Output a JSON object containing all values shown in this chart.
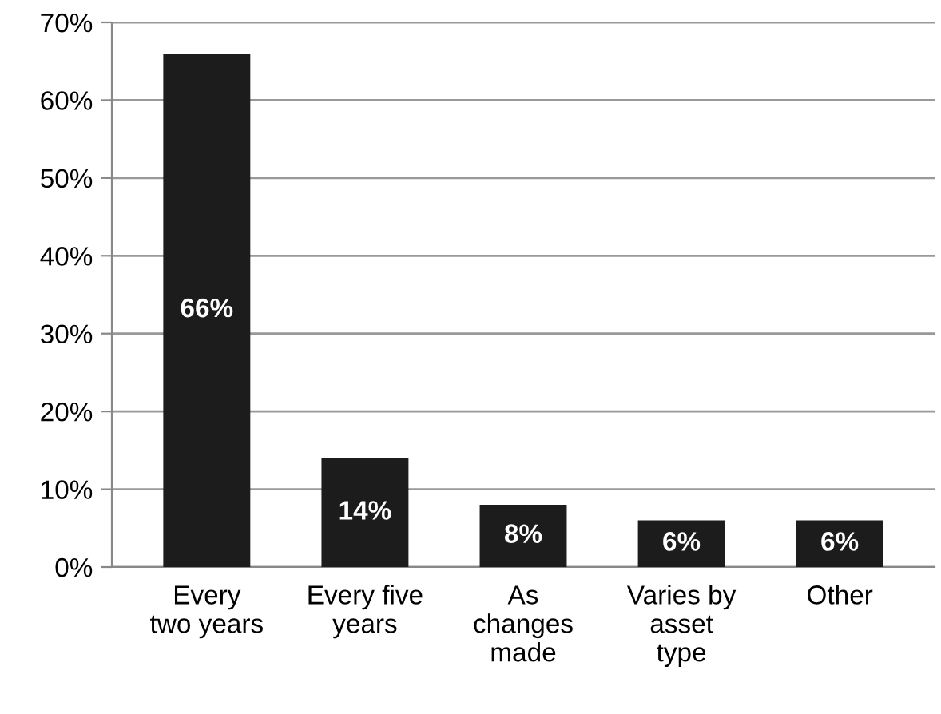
{
  "chart_data": {
    "type": "bar",
    "categories": [
      "Every\ntwo years",
      "Every five\nyears",
      "As\nchanges\nmade",
      "Varies by\nasset\ntype",
      "Other"
    ],
    "values": [
      66,
      14,
      8,
      6,
      6
    ],
    "value_labels": [
      "66%",
      "14%",
      "8%",
      "6%",
      "6%"
    ],
    "color": "#1c1c1c",
    "ylim": [
      0,
      70
    ],
    "yticks": [
      {
        "value": 0,
        "label": "0%"
      },
      {
        "value": 10,
        "label": "10%"
      },
      {
        "value": 20,
        "label": "20%"
      },
      {
        "value": 30,
        "label": "30%"
      },
      {
        "value": 40,
        "label": "40%"
      },
      {
        "value": 50,
        "label": "50%"
      },
      {
        "value": 60,
        "label": "60%"
      },
      {
        "value": 70,
        "label": "70%"
      }
    ],
    "grid": "y"
  }
}
